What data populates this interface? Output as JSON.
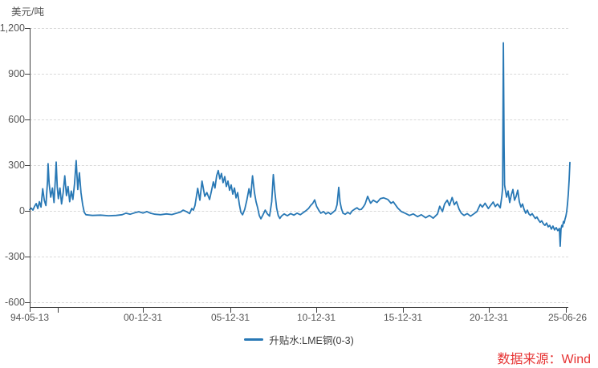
{
  "chart": {
    "source_label": "数据来源：Wind"
  },
  "colors": {
    "line": "#2878b5",
    "grid": "#d9d9d9",
    "axis": "#404040",
    "tick_text": "#555555",
    "legend_text": "#3c3c3c",
    "source_text": "#e63333"
  },
  "chart_data": {
    "type": "line",
    "title": "",
    "ylabel": "美元/吨",
    "xlabel": "",
    "ylim": [
      -600,
      1200
    ],
    "y_ticks": [
      "1,200",
      "900",
      "600",
      "300",
      "0",
      "-300",
      "-600"
    ],
    "y_tick_values": [
      1200,
      900,
      600,
      300,
      0,
      -300,
      -600
    ],
    "x_ticks": [
      "94-05-13",
      "00-12-31",
      "05-12-31",
      "10-12-31",
      "15-12-31",
      "20-12-31",
      "25-06-26"
    ],
    "x_range": [
      "1994-05-13",
      "2025-06-26"
    ],
    "grid": "horizontal dashed",
    "legend_position": "bottom-center",
    "series": [
      {
        "name": "升贴水:LME铜(0-3)",
        "color": "#2878b5",
        "x_is": "fraction of time axis between 1994-05-13 and 2025-06-26",
        "unit": "USD/ton",
        "points": [
          [
            0,
            8
          ],
          [
            0.003,
            18
          ],
          [
            0.006,
            5
          ],
          [
            0.009,
            30
          ],
          [
            0.012,
            48
          ],
          [
            0.015,
            15
          ],
          [
            0.018,
            60
          ],
          [
            0.021,
            25
          ],
          [
            0.024,
            145
          ],
          [
            0.027,
            70
          ],
          [
            0.03,
            35
          ],
          [
            0.033,
            195
          ],
          [
            0.034,
            310
          ],
          [
            0.036,
            180
          ],
          [
            0.039,
            90
          ],
          [
            0.042,
            150
          ],
          [
            0.045,
            55
          ],
          [
            0.048,
            240
          ],
          [
            0.049,
            320
          ],
          [
            0.051,
            160
          ],
          [
            0.053,
            80
          ],
          [
            0.056,
            150
          ],
          [
            0.059,
            45
          ],
          [
            0.062,
            120
          ],
          [
            0.065,
            230
          ],
          [
            0.068,
            100
          ],
          [
            0.071,
            160
          ],
          [
            0.074,
            60
          ],
          [
            0.077,
            130
          ],
          [
            0.08,
            75
          ],
          [
            0.083,
            180
          ],
          [
            0.086,
            330
          ],
          [
            0.089,
            140
          ],
          [
            0.092,
            250
          ],
          [
            0.095,
            120
          ],
          [
            0.098,
            40
          ],
          [
            0.101,
            -10
          ],
          [
            0.104,
            -25
          ],
          [
            0.116,
            -30
          ],
          [
            0.131,
            -28
          ],
          [
            0.146,
            -32
          ],
          [
            0.16,
            -30
          ],
          [
            0.171,
            -25
          ],
          [
            0.178,
            -15
          ],
          [
            0.186,
            -22
          ],
          [
            0.195,
            -12
          ],
          [
            0.202,
            -6
          ],
          [
            0.21,
            -14
          ],
          [
            0.217,
            -5
          ],
          [
            0.224,
            -16
          ],
          [
            0.232,
            -22
          ],
          [
            0.242,
            -25
          ],
          [
            0.253,
            -20
          ],
          [
            0.263,
            -24
          ],
          [
            0.272,
            -15
          ],
          [
            0.279,
            -8
          ],
          [
            0.284,
            5
          ],
          [
            0.29,
            -5
          ],
          [
            0.296,
            -18
          ],
          [
            0.3,
            15
          ],
          [
            0.303,
            5
          ],
          [
            0.306,
            35
          ],
          [
            0.311,
            148
          ],
          [
            0.315,
            70
          ],
          [
            0.319,
            195
          ],
          [
            0.324,
            95
          ],
          [
            0.328,
            120
          ],
          [
            0.333,
            75
          ],
          [
            0.337,
            140
          ],
          [
            0.34,
            190
          ],
          [
            0.343,
            150
          ],
          [
            0.346,
            230
          ],
          [
            0.349,
            265
          ],
          [
            0.352,
            210
          ],
          [
            0.355,
            245
          ],
          [
            0.358,
            185
          ],
          [
            0.361,
            225
          ],
          [
            0.364,
            160
          ],
          [
            0.367,
            195
          ],
          [
            0.37,
            135
          ],
          [
            0.373,
            170
          ],
          [
            0.376,
            110
          ],
          [
            0.379,
            150
          ],
          [
            0.382,
            85
          ],
          [
            0.385,
            120
          ],
          [
            0.388,
            45
          ],
          [
            0.391,
            -10
          ],
          [
            0.394,
            -26
          ],
          [
            0.398,
            10
          ],
          [
            0.402,
            70
          ],
          [
            0.406,
            145
          ],
          [
            0.409,
            90
          ],
          [
            0.4125,
            230
          ],
          [
            0.416,
            120
          ],
          [
            0.419,
            60
          ],
          [
            0.422,
            20
          ],
          [
            0.425,
            -30
          ],
          [
            0.428,
            -52
          ],
          [
            0.432,
            -25
          ],
          [
            0.436,
            5
          ],
          [
            0.44,
            -20
          ],
          [
            0.444,
            -35
          ],
          [
            0.448,
            60
          ],
          [
            0.451,
            238
          ],
          [
            0.454,
            120
          ],
          [
            0.457,
            20
          ],
          [
            0.46,
            -30
          ],
          [
            0.463,
            -50
          ],
          [
            0.466,
            -35
          ],
          [
            0.471,
            -20
          ],
          [
            0.477,
            -32
          ],
          [
            0.483,
            -18
          ],
          [
            0.489,
            -28
          ],
          [
            0.495,
            -15
          ],
          [
            0.501,
            -25
          ],
          [
            0.507,
            -10
          ],
          [
            0.511,
            0
          ],
          [
            0.516,
            15
          ],
          [
            0.52,
            35
          ],
          [
            0.524,
            50
          ],
          [
            0.5275,
            72
          ],
          [
            0.531,
            30
          ],
          [
            0.535,
            5
          ],
          [
            0.539,
            -15
          ],
          [
            0.544,
            -5
          ],
          [
            0.548,
            -20
          ],
          [
            0.553,
            -10
          ],
          [
            0.557,
            -22
          ],
          [
            0.562,
            -8
          ],
          [
            0.566,
            5
          ],
          [
            0.569,
            40
          ],
          [
            0.572,
            155
          ],
          [
            0.5745,
            60
          ],
          [
            0.577,
            15
          ],
          [
            0.58,
            -15
          ],
          [
            0.584,
            -22
          ],
          [
            0.589,
            -10
          ],
          [
            0.593,
            -20
          ],
          [
            0.597,
            0
          ],
          [
            0.602,
            12
          ],
          [
            0.606,
            20
          ],
          [
            0.61,
            8
          ],
          [
            0.614,
            10
          ],
          [
            0.618,
            28
          ],
          [
            0.621,
            45
          ],
          [
            0.6255,
            95
          ],
          [
            0.631,
            50
          ],
          [
            0.636,
            70
          ],
          [
            0.643,
            55
          ],
          [
            0.649,
            80
          ],
          [
            0.655,
            86
          ],
          [
            0.663,
            75
          ],
          [
            0.669,
            50
          ],
          [
            0.673,
            60
          ],
          [
            0.681,
            20
          ],
          [
            0.688,
            -5
          ],
          [
            0.695,
            -15
          ],
          [
            0.703,
            -30
          ],
          [
            0.71,
            -20
          ],
          [
            0.718,
            -38
          ],
          [
            0.725,
            -25
          ],
          [
            0.733,
            -45
          ],
          [
            0.74,
            -30
          ],
          [
            0.747,
            -48
          ],
          [
            0.755,
            -20
          ],
          [
            0.759,
            30
          ],
          [
            0.764,
            -5
          ],
          [
            0.768,
            45
          ],
          [
            0.773,
            70
          ],
          [
            0.777,
            35
          ],
          [
            0.782,
            88
          ],
          [
            0.786,
            40
          ],
          [
            0.79,
            60
          ],
          [
            0.795,
            10
          ],
          [
            0.799,
            -15
          ],
          [
            0.804,
            -30
          ],
          [
            0.81,
            -18
          ],
          [
            0.816,
            -35
          ],
          [
            0.822,
            -20
          ],
          [
            0.828,
            -5
          ],
          [
            0.834,
            42
          ],
          [
            0.838,
            25
          ],
          [
            0.843,
            50
          ],
          [
            0.849,
            15
          ],
          [
            0.853,
            35
          ],
          [
            0.858,
            58
          ],
          [
            0.862,
            28
          ],
          [
            0.866,
            45
          ],
          [
            0.871,
            20
          ],
          [
            0.874,
            95
          ],
          [
            0.8755,
            150
          ],
          [
            0.8768,
            1103
          ],
          [
            0.8782,
            430
          ],
          [
            0.879,
            170
          ],
          [
            0.8827,
            90
          ],
          [
            0.8856,
            130
          ],
          [
            0.8886,
            55
          ],
          [
            0.8915,
            105
          ],
          [
            0.8945,
            140
          ],
          [
            0.8975,
            70
          ],
          [
            0.9004,
            95
          ],
          [
            0.9034,
            135
          ],
          [
            0.9064,
            60
          ],
          [
            0.9093,
            25
          ],
          [
            0.9123,
            45
          ],
          [
            0.9152,
            10
          ],
          [
            0.9182,
            -15
          ],
          [
            0.9212,
            5
          ],
          [
            0.9241,
            -20
          ],
          [
            0.9271,
            -30
          ],
          [
            0.9301,
            -18
          ],
          [
            0.933,
            -35
          ],
          [
            0.936,
            -50
          ],
          [
            0.939,
            -40
          ],
          [
            0.9419,
            -60
          ],
          [
            0.9449,
            -75
          ],
          [
            0.9479,
            -65
          ],
          [
            0.9508,
            -85
          ],
          [
            0.9538,
            -95
          ],
          [
            0.9568,
            -80
          ],
          [
            0.9597,
            -105
          ],
          [
            0.9627,
            -95
          ],
          [
            0.9657,
            -120
          ],
          [
            0.9687,
            -100
          ],
          [
            0.9716,
            -125
          ],
          [
            0.9746,
            -110
          ],
          [
            0.9776,
            -130
          ],
          [
            0.9805,
            -115
          ],
          [
            0.982,
            -232
          ],
          [
            0.9835,
            -120
          ],
          [
            0.985,
            -95
          ],
          [
            0.9865,
            -105
          ],
          [
            0.988,
            -70
          ],
          [
            0.9895,
            -80
          ],
          [
            0.991,
            -55
          ],
          [
            0.9925,
            -35
          ],
          [
            0.994,
            -5
          ],
          [
            0.9955,
            45
          ],
          [
            0.997,
            110
          ],
          [
            0.9985,
            200
          ],
          [
            1,
            318
          ]
        ]
      }
    ]
  }
}
